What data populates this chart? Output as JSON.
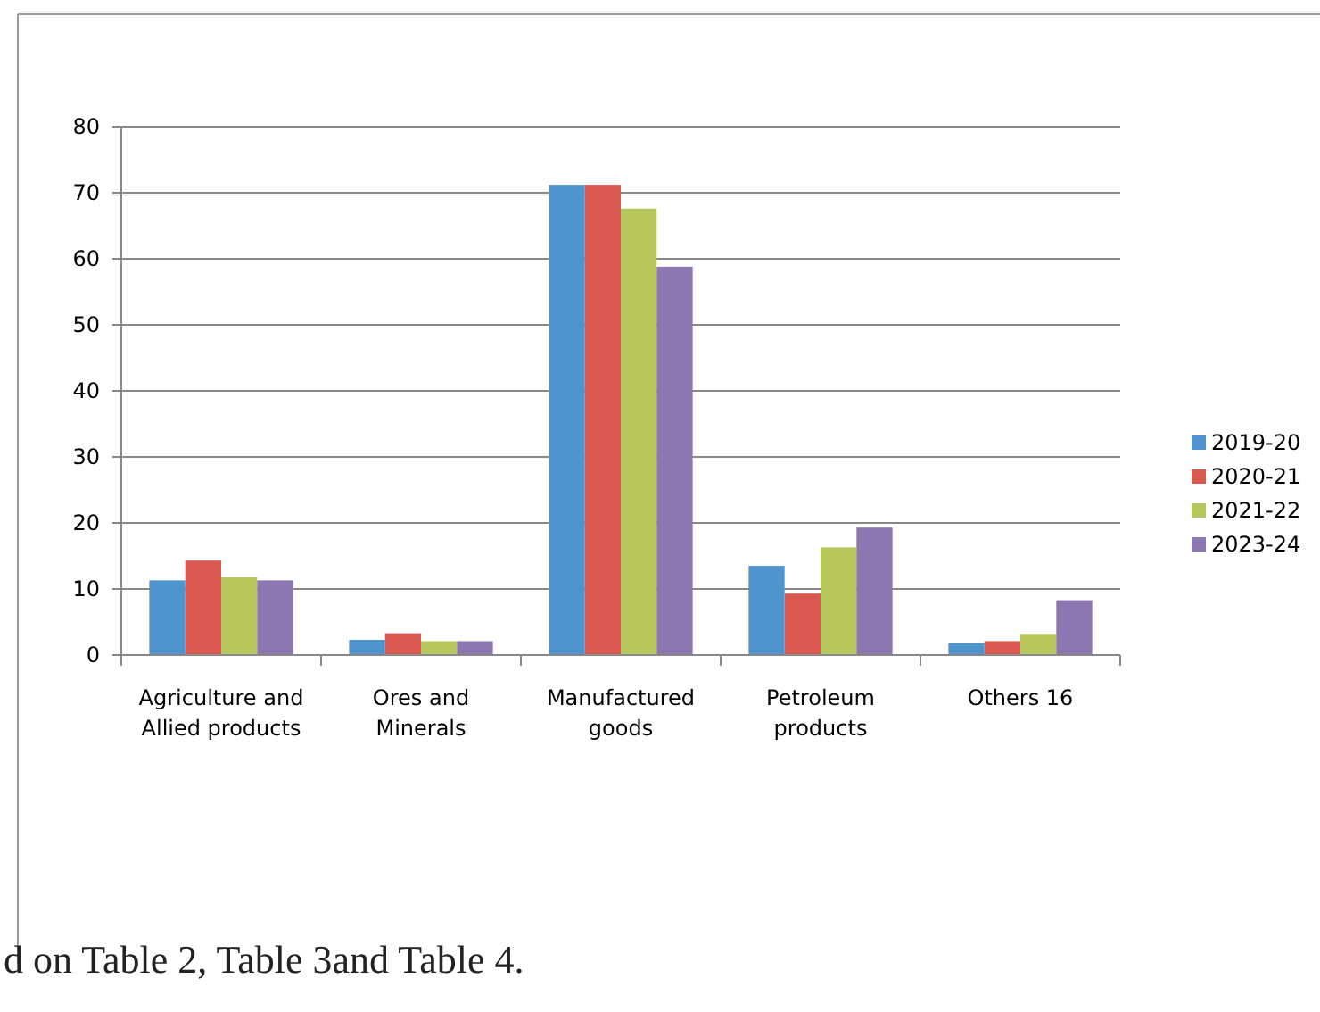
{
  "chart_data": {
    "type": "bar",
    "categories": [
      "Agriculture and Allied products",
      "Ores and Minerals",
      "Manufactured goods",
      "Petroleum products",
      "Others 16"
    ],
    "series": [
      {
        "name": "2019-20",
        "color": "#4f94cd",
        "values": [
          11.3,
          2.3,
          71.2,
          13.5,
          1.8
        ]
      },
      {
        "name": "2020-21",
        "color": "#d9584f",
        "values": [
          14.3,
          3.3,
          71.2,
          9.3,
          2.1
        ]
      },
      {
        "name": "2021-22",
        "color": "#b8c75b",
        "values": [
          11.8,
          2.1,
          67.6,
          16.3,
          3.2
        ]
      },
      {
        "name": "2023-24",
        "color": "#8d77b0",
        "values": [
          11.3,
          2.1,
          58.8,
          19.3,
          8.3
        ]
      }
    ],
    "ylim": [
      0,
      80
    ],
    "yticks": [
      0,
      10,
      20,
      30,
      40,
      50,
      60,
      70,
      80
    ],
    "grid": "y",
    "legend": "right",
    "annotations": [
      "d on Table 2, Table 3and Table 4."
    ]
  }
}
